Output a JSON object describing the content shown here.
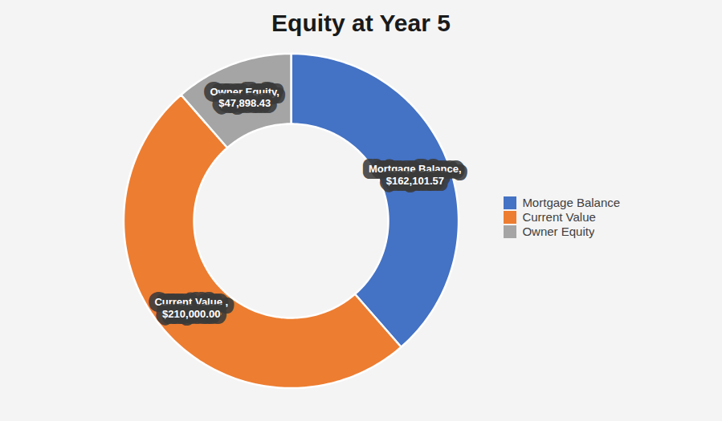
{
  "chart_data": {
    "type": "donut",
    "title": "Equity at Year 5",
    "categories": [
      "Mortgage Balance",
      "Current Value",
      "Owner Equity"
    ],
    "values": [
      162101.57,
      210000.0,
      47898.43
    ],
    "colors": [
      "#4472C4",
      "#ED7D31",
      "#A5A5A5"
    ],
    "annotations": [
      "Mortgage Balance,\n$162,101.57",
      "Current Value ,\n$210,000.00",
      "Owner Equity,\n$47,898.43"
    ],
    "legend": "right"
  }
}
